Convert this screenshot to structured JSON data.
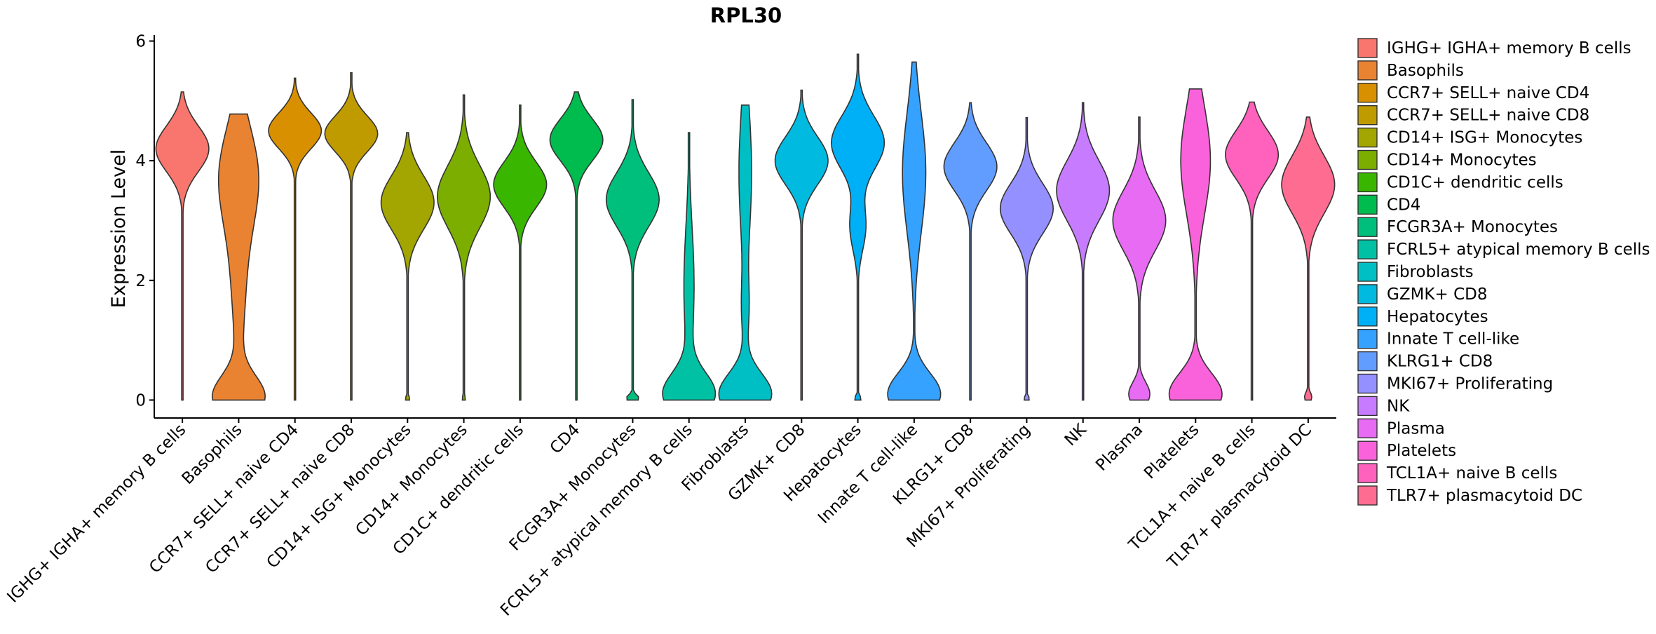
{
  "chart_data": {
    "type": "violin",
    "title": "RPL30",
    "xlabel": "",
    "ylabel": "Expression Level",
    "ylim": [
      -0.3,
      6.1
    ],
    "yticks": [
      0,
      2,
      4,
      6
    ],
    "grid": false,
    "legend_position": "right",
    "categories": [
      "IGHG+ IGHA+ memory B cells",
      "Basophils",
      "CCR7+ SELL+ naive CD4",
      "CCR7+ SELL+ naive CD8",
      "CD14+ ISG+ Monocytes",
      "CD14+ Monocytes",
      "CD1C+ dendritic cells",
      "CD4",
      "FCGR3A+ Monocytes",
      "FCRL5+ atypical memory B cells",
      "Fibroblasts",
      "GZMK+ CD8",
      "Hepatocytes",
      "Innate T cell-like",
      "KLRG1+ CD8",
      "MKI67+ Proliferating",
      "NK",
      "Plasma",
      "Platelets",
      "TCL1A+ naive B cells",
      "TLR7+ plasmacytoid DC"
    ],
    "legend_labels": [
      " IGHG+ IGHA+ memory B cells",
      "Basophils",
      "CCR7+ SELL+ naive CD4",
      "CCR7+ SELL+ naive CD8",
      "CD14+ ISG+ Monocytes",
      "CD14+ Monocytes",
      "CD1C+ dendritic cells",
      "CD4",
      "FCGR3A+ Monocytes",
      "FCRL5+ atypical memory B cells",
      "Fibroblasts",
      "GZMK+ CD8",
      "Hepatocytes",
      "Innate T cell-like",
      "KLRG1+ CD8",
      "MKI67+ Proliferating",
      "NK",
      "Plasma",
      "Platelets",
      "TCL1A+ naive B cells",
      "TLR7+ plasmacytoid DC"
    ],
    "colors": [
      "#F8766D",
      "#EA8331",
      "#D89000",
      "#C09B00",
      "#A3A500",
      "#7CAE00",
      "#39B600",
      "#00BB4E",
      "#00BF7D",
      "#00C1A3",
      "#00BFC4",
      "#00BAE0",
      "#00B0F6",
      "#35A2FF",
      "#619CFF",
      "#9590FF",
      "#C77CFF",
      "#E76BF3",
      "#FA62DB",
      "#FF62BC",
      "#FF6C91"
    ],
    "violins": [
      {
        "min": 0,
        "max": 5.15,
        "peaks": [
          [
            4.2,
            0.5,
            0.38
          ]
        ]
      },
      {
        "min": 0,
        "max": 4.78,
        "peaks": [
          [
            0.05,
            0.5,
            0.35
          ],
          [
            3.8,
            0.34,
            0.8
          ],
          [
            2.2,
            0.14,
            1.2
          ]
        ]
      },
      {
        "min": 0,
        "max": 5.38,
        "peaks": [
          [
            4.5,
            0.5,
            0.3
          ]
        ]
      },
      {
        "min": 0,
        "max": 5.47,
        "peaks": [
          [
            4.45,
            0.5,
            0.3
          ]
        ]
      },
      {
        "min": 0,
        "max": 4.47,
        "peaks": [
          [
            3.3,
            0.5,
            0.45
          ],
          [
            0.02,
            0.04,
            0.05
          ]
        ]
      },
      {
        "min": 0,
        "max": 5.1,
        "peaks": [
          [
            3.4,
            0.5,
            0.52
          ],
          [
            0.02,
            0.03,
            0.05
          ]
        ]
      },
      {
        "min": 0,
        "max": 4.93,
        "peaks": [
          [
            3.6,
            0.5,
            0.38
          ]
        ]
      },
      {
        "min": 0,
        "max": 5.15,
        "peaks": [
          [
            4.35,
            0.5,
            0.35
          ]
        ]
      },
      {
        "min": 0,
        "max": 5.02,
        "peaks": [
          [
            3.35,
            0.5,
            0.45
          ],
          [
            0.03,
            0.12,
            0.06
          ]
        ]
      },
      {
        "min": 0,
        "max": 4.47,
        "peaks": [
          [
            0.1,
            0.5,
            0.35
          ],
          [
            1.9,
            0.1,
            1.0
          ]
        ]
      },
      {
        "min": 0,
        "max": 4.93,
        "peaks": [
          [
            0.1,
            0.5,
            0.35
          ],
          [
            3.8,
            0.12,
            1.1
          ],
          [
            1.5,
            0.06,
            0.5
          ]
        ]
      },
      {
        "min": 0,
        "max": 5.18,
        "peaks": [
          [
            4.0,
            0.5,
            0.4
          ]
        ]
      },
      {
        "min": 0,
        "max": 5.78,
        "peaks": [
          [
            4.3,
            0.5,
            0.45
          ],
          [
            2.9,
            0.15,
            0.4
          ],
          [
            0.02,
            0.06,
            0.06
          ]
        ]
      },
      {
        "min": 0,
        "max": 5.65,
        "peaks": [
          [
            0.1,
            0.5,
            0.35
          ],
          [
            3.8,
            0.22,
            1.0
          ]
        ]
      },
      {
        "min": 0,
        "max": 4.97,
        "peaks": [
          [
            3.9,
            0.5,
            0.4
          ]
        ]
      },
      {
        "min": 0,
        "max": 4.72,
        "peaks": [
          [
            3.2,
            0.5,
            0.42
          ],
          [
            0.02,
            0.05,
            0.05
          ]
        ]
      },
      {
        "min": 0,
        "max": 4.97,
        "peaks": [
          [
            3.5,
            0.5,
            0.5
          ]
        ]
      },
      {
        "min": 0,
        "max": 4.73,
        "peaks": [
          [
            3.0,
            0.5,
            0.5
          ],
          [
            0.1,
            0.2,
            0.2
          ]
        ]
      },
      {
        "min": 0,
        "max": 5.2,
        "peaks": [
          [
            0.1,
            0.5,
            0.35
          ],
          [
            4.0,
            0.28,
            0.9
          ]
        ]
      },
      {
        "min": 0,
        "max": 4.98,
        "peaks": [
          [
            4.1,
            0.5,
            0.4
          ]
        ]
      },
      {
        "min": 0,
        "max": 4.73,
        "peaks": [
          [
            3.6,
            0.5,
            0.48
          ],
          [
            0.05,
            0.07,
            0.08
          ]
        ]
      }
    ]
  }
}
